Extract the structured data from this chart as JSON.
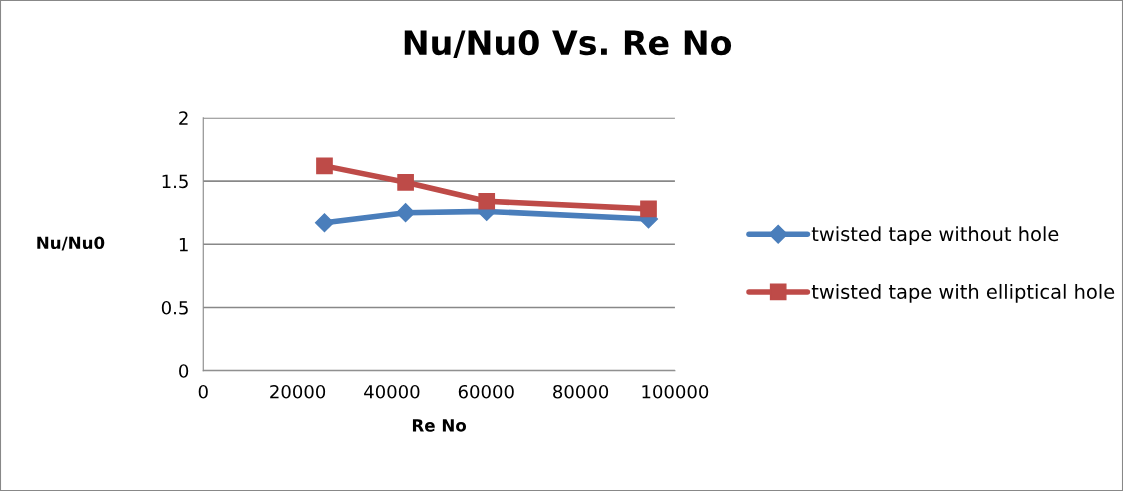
{
  "chart_data": {
    "type": "line",
    "title": "Nu/Nu0 Vs. Re No",
    "xlabel": "Re No",
    "ylabel": "Nu/Nu0",
    "x": [
      25700,
      42900,
      60100,
      94400
    ],
    "series": [
      {
        "name": "twisted tape without hole",
        "color": "#4a7ebb",
        "marker": "diamond",
        "values": [
          1.17,
          1.25,
          1.26,
          1.2
        ]
      },
      {
        "name": "twisted tape with elliptical hole",
        "color": "#be4b48",
        "marker": "square",
        "values": [
          1.62,
          1.49,
          1.34,
          1.28
        ]
      }
    ],
    "xlim": [
      0,
      100000
    ],
    "xticks": [
      0,
      20000,
      40000,
      60000,
      80000,
      100000
    ],
    "ylim": [
      0,
      2
    ],
    "yticks": [
      0,
      0.5,
      1,
      1.5,
      2
    ],
    "grid": "y",
    "legend": "right",
    "line_style": "solid"
  }
}
